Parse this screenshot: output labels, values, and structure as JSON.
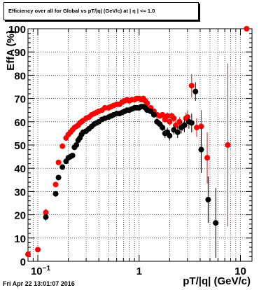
{
  "footer": {
    "timestamp": "Fri Apr 22 13:01:07 2016"
  },
  "chart_data": {
    "type": "scatter",
    "title": "Efficiency over all for Global vs pT/|q| (GeV/c) at | η | <= 1.0",
    "xlabel": "pT/|q| (GeV/c)",
    "ylabel": "EffA (%)",
    "xscale": "log",
    "xlim": [
      0.08,
      13
    ],
    "ylim": [
      0,
      100
    ],
    "grid": true,
    "x_ticks": [
      {
        "value": 0.1,
        "base": "10",
        "exp": "−1"
      },
      {
        "value": 1,
        "label": "1"
      },
      {
        "value": 10,
        "label": "10"
      }
    ],
    "y_ticks": [
      0,
      10,
      20,
      30,
      40,
      50,
      60,
      70,
      80,
      90,
      100
    ],
    "series": [
      {
        "color": "#ff0000",
        "points": [
          [
            0.08,
            3,
            0.003,
            1
          ],
          [
            0.1,
            5,
            0.004,
            1
          ],
          [
            0.12,
            21,
            0.006,
            1.5
          ],
          [
            0.15,
            33,
            0,
            1
          ],
          [
            0.16,
            42.5,
            0,
            1
          ],
          [
            0.175,
            49.5,
            0,
            0.8
          ],
          [
            0.19,
            53,
            0,
            0.5
          ],
          [
            0.2,
            54.5,
            0,
            0.5
          ],
          [
            0.21,
            55.5,
            0,
            0.5
          ],
          [
            0.22,
            56.5,
            0,
            0.5
          ],
          [
            0.23,
            57.5,
            0,
            0.5
          ],
          [
            0.24,
            58,
            0,
            0.5
          ],
          [
            0.25,
            58.5,
            0,
            0.5
          ],
          [
            0.26,
            59.5,
            0,
            0.5
          ],
          [
            0.27,
            60,
            0,
            0.5
          ],
          [
            0.28,
            60.5,
            0,
            0.5
          ],
          [
            0.3,
            61.5,
            0,
            0.5
          ],
          [
            0.32,
            62,
            0,
            0.5
          ],
          [
            0.34,
            63,
            0,
            0.5
          ],
          [
            0.36,
            63.5,
            0,
            0.5
          ],
          [
            0.38,
            64,
            0,
            0.5
          ],
          [
            0.4,
            64.5,
            0,
            0.5
          ],
          [
            0.43,
            65,
            0,
            0.5
          ],
          [
            0.46,
            66,
            0,
            0.5
          ],
          [
            0.5,
            66,
            0,
            0.5
          ],
          [
            0.53,
            66.5,
            0,
            0.5
          ],
          [
            0.56,
            67,
            0,
            0.5
          ],
          [
            0.6,
            67.5,
            0,
            0.5
          ],
          [
            0.64,
            67.5,
            0,
            0.5
          ],
          [
            0.68,
            68.5,
            0,
            0.5
          ],
          [
            0.72,
            69,
            0,
            0.5
          ],
          [
            0.76,
            69.5,
            0,
            0.5
          ],
          [
            0.8,
            69,
            0,
            0.5
          ],
          [
            0.85,
            69.5,
            0,
            0.5
          ],
          [
            0.9,
            69.5,
            0,
            0.5
          ],
          [
            0.95,
            70,
            0,
            0.5
          ],
          [
            1.0,
            70,
            0,
            0.5
          ],
          [
            1.05,
            69.5,
            0,
            0.5
          ],
          [
            1.1,
            70,
            0,
            0.5
          ],
          [
            1.15,
            69,
            0,
            0.5
          ],
          [
            1.2,
            68,
            0,
            0.5
          ],
          [
            1.3,
            66,
            0,
            1
          ],
          [
            1.4,
            64.5,
            0,
            1
          ],
          [
            1.5,
            63,
            0,
            1
          ],
          [
            1.6,
            62.5,
            0,
            1
          ],
          [
            1.7,
            63,
            0,
            1
          ],
          [
            1.8,
            61,
            0,
            1.5
          ],
          [
            1.9,
            62.5,
            0,
            1.5
          ],
          [
            2.0,
            60,
            0,
            1.5
          ],
          [
            2.1,
            62.5,
            0,
            1.5
          ],
          [
            2.2,
            61.5,
            0,
            1.5
          ],
          [
            2.3,
            58.5,
            0,
            2
          ],
          [
            2.5,
            60,
            0,
            2
          ],
          [
            2.7,
            58,
            0,
            2
          ],
          [
            2.9,
            61.5,
            0,
            2.5
          ],
          [
            3.0,
            62,
            0,
            3
          ],
          [
            3.3,
            75.5,
            0.15,
            5
          ],
          [
            3.7,
            57.5,
            0.2,
            4
          ],
          [
            4.1,
            58,
            0.25,
            7
          ],
          [
            4.7,
            44.5,
            0.3,
            11
          ],
          [
            7.5,
            50,
            0.5,
            35
          ],
          [
            11.5,
            100,
            0,
            0
          ]
        ]
      },
      {
        "color": "#000000",
        "points": [
          [
            0.12,
            19,
            0.006,
            1.5
          ],
          [
            0.15,
            29,
            0,
            1
          ],
          [
            0.16,
            36,
            0,
            1
          ],
          [
            0.175,
            40.5,
            0,
            1
          ],
          [
            0.19,
            43,
            0,
            1
          ],
          [
            0.2,
            44.5,
            0,
            1
          ],
          [
            0.21,
            45,
            0,
            1
          ],
          [
            0.22,
            45.5,
            0,
            1
          ],
          [
            0.23,
            49,
            0,
            1
          ],
          [
            0.24,
            50,
            0,
            1
          ],
          [
            0.25,
            52,
            0,
            1
          ],
          [
            0.26,
            53,
            0,
            1
          ],
          [
            0.27,
            54.5,
            0,
            1
          ],
          [
            0.28,
            55.5,
            0,
            1
          ],
          [
            0.3,
            56,
            0,
            1
          ],
          [
            0.32,
            57,
            0,
            1
          ],
          [
            0.34,
            58,
            0,
            1
          ],
          [
            0.36,
            59,
            0,
            1
          ],
          [
            0.38,
            59.5,
            0,
            1
          ],
          [
            0.4,
            60,
            0,
            1
          ],
          [
            0.43,
            61,
            0,
            1
          ],
          [
            0.46,
            61.5,
            0,
            1
          ],
          [
            0.5,
            62,
            0,
            1
          ],
          [
            0.53,
            62.5,
            0,
            1
          ],
          [
            0.56,
            63,
            0,
            1
          ],
          [
            0.6,
            63.5,
            0,
            1
          ],
          [
            0.64,
            63.5,
            0,
            1
          ],
          [
            0.68,
            64,
            0,
            1
          ],
          [
            0.72,
            64.5,
            0,
            1
          ],
          [
            0.76,
            65,
            0,
            1
          ],
          [
            0.8,
            65,
            0,
            1
          ],
          [
            0.85,
            65.5,
            0,
            1
          ],
          [
            0.9,
            66,
            0,
            1
          ],
          [
            0.95,
            66,
            0,
            1
          ],
          [
            1.0,
            66,
            0,
            1
          ],
          [
            1.05,
            66.5,
            0,
            1
          ],
          [
            1.1,
            66.5,
            0,
            1
          ],
          [
            1.15,
            66,
            0,
            1
          ],
          [
            1.2,
            65,
            0,
            1
          ],
          [
            1.3,
            64.5,
            0,
            1
          ],
          [
            1.4,
            63,
            0,
            1
          ],
          [
            1.5,
            60,
            0,
            1.5
          ],
          [
            1.6,
            59,
            0,
            1.5
          ],
          [
            1.7,
            57.5,
            0,
            1.5
          ],
          [
            1.8,
            55,
            0,
            2
          ],
          [
            1.9,
            55.5,
            0,
            2
          ],
          [
            2.0,
            54,
            0,
            2
          ],
          [
            2.2,
            56.5,
            0,
            2
          ],
          [
            2.4,
            55.5,
            0,
            2.5
          ],
          [
            2.6,
            57.5,
            0,
            2.5
          ],
          [
            2.8,
            58.5,
            0,
            3
          ],
          [
            3.1,
            60,
            0,
            3
          ],
          [
            3.3,
            59.5,
            0.15,
            4
          ],
          [
            3.6,
            73,
            0.2,
            4
          ],
          [
            4.1,
            48,
            0.25,
            10
          ],
          [
            4.8,
            26.5,
            0.3,
            10
          ],
          [
            5.7,
            16.5,
            0.4,
            15
          ]
        ]
      }
    ]
  }
}
